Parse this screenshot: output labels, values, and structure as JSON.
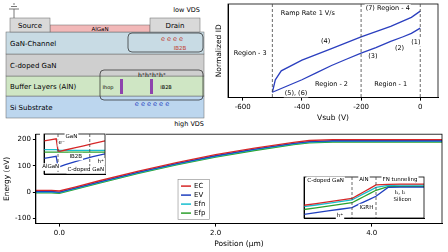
{
  "schematic": {
    "terminal_top": "low VDS",
    "terminal_bottom": "high VDS",
    "layers": {
      "source": "Source",
      "drain": "Drain",
      "barrier": "AlGaN",
      "channel": "GaN-Channel",
      "cdoped": "C-doped GaN",
      "buffer": "Buffer Layers (AlN)",
      "substrate": "Si Substrate"
    },
    "carriers": {
      "channel_electrons": "e e e e",
      "holes": "h⁺h⁺h⁺h⁺",
      "substrate_electrons": "e e e e e e"
    },
    "currents": {
      "drain": "IB2B",
      "buffer_left": "Ihop",
      "buffer_right": "IB2B"
    }
  },
  "chart_data": [
    {
      "type": "line",
      "xlabel": "Vsub (V)",
      "ylabel": "Normalized ID",
      "xlim": [
        -650,
        60
      ],
      "ylim": [
        0,
        1.05
      ],
      "xticks": [
        -600,
        -400,
        -200,
        0
      ],
      "tick_labels": "x",
      "grid": false,
      "series": [
        {
          "color": "#2b3fbf",
          "x": [
            0,
            -30,
            -60,
            -100,
            -150,
            -200,
            -250,
            -300,
            -350,
            -400,
            -450,
            -500
          ],
          "values": [
            0.78,
            0.72,
            0.68,
            0.63,
            0.56,
            0.5,
            0.43,
            0.36,
            0.28,
            0.2,
            0.13,
            0.06
          ]
        },
        {
          "color": "#2b3fbf",
          "x": [
            -500,
            -490,
            -470,
            -400,
            -300,
            -200,
            -100,
            -30,
            0
          ],
          "values": [
            0.06,
            0.2,
            0.3,
            0.42,
            0.55,
            0.68,
            0.8,
            0.9,
            0.97
          ]
        }
      ],
      "vlines": [
        -500,
        -200,
        0
      ],
      "annotations": [
        {
          "text": "Ramp Rate 1 V/s",
          "x": -380,
          "y": 0.95
        },
        {
          "text": "(7) Region - 4",
          "x": -110,
          "y": 1.0
        },
        {
          "text": "Region - 1",
          "x": -100,
          "y": 0.15
        },
        {
          "text": "Region - 2",
          "x": -300,
          "y": 0.15
        },
        {
          "text": "Region - 3",
          "x": -575,
          "y": 0.5
        },
        {
          "text": "(1)",
          "x": -15,
          "y": 0.62
        },
        {
          "text": "(2)",
          "x": -70,
          "y": 0.55
        },
        {
          "text": "(3)",
          "x": -160,
          "y": 0.46
        },
        {
          "text": "(4)",
          "x": -320,
          "y": 0.63
        },
        {
          "text": "(5), (6)",
          "x": -420,
          "y": 0.05
        }
      ]
    },
    {
      "type": "line",
      "xlabel": "Position (μm)",
      "ylabel": "Energy (eV)",
      "xlim": [
        -0.3,
        4.9
      ],
      "ylim": [
        -120,
        220
      ],
      "xticks": [
        {
          "value": 0,
          "label": "0.0"
        },
        {
          "value": 2,
          "label": "2.0"
        },
        {
          "value": 4,
          "label": "4.0"
        }
      ],
      "yticks": [
        -100,
        0,
        100,
        200
      ],
      "grid": false,
      "legend": "lower center",
      "x": [
        -0.3,
        -0.1,
        0,
        0.2,
        0.5,
        1,
        1.5,
        2,
        2.5,
        3,
        3.2,
        3.5,
        4,
        4.9
      ],
      "series": [
        {
          "name": "EC",
          "color": "#d62728",
          "values": [
            6,
            6,
            4,
            19,
            42,
            79,
            112,
            142,
            167,
            189,
            196,
            199,
            199,
            199
          ]
        },
        {
          "name": "EV",
          "color": "#1f3fbf",
          "values": [
            2,
            2,
            0,
            15,
            38,
            75,
            108,
            138,
            163,
            185,
            192,
            195,
            195,
            195
          ]
        },
        {
          "name": "Efn",
          "color": "#17becf",
          "values": [
            0,
            0,
            -2,
            13,
            36,
            73,
            106,
            136,
            161,
            183,
            190,
            193,
            193,
            193
          ]
        },
        {
          "name": "Efp",
          "color": "#2ca02c",
          "values": [
            -3,
            -3,
            -5,
            10,
            33,
            70,
            103,
            133,
            158,
            180,
            187,
            190,
            190,
            190
          ]
        }
      ]
    },
    {
      "type": "line",
      "xlim": [
        0,
        10
      ],
      "ylim": [
        -0.5,
        11
      ],
      "tick_labels": false,
      "grid": false,
      "x": [
        0,
        1,
        2,
        2.3,
        2.6,
        3.5,
        5,
        6.5,
        8,
        10
      ],
      "series": [
        {
          "color": "#d62728",
          "values": [
            9,
            9.3,
            9.6,
            6.2,
            6.0,
            6.4,
            7.0,
            7.6,
            8.2,
            9.0
          ]
        },
        {
          "color": "#1f3fbf",
          "values": [
            4,
            4.3,
            4.6,
            1.4,
            1.6,
            2.2,
            3.0,
            3.8,
            4.5,
            5.3
          ]
        },
        {
          "color": "#17becf",
          "values": [
            6.5,
            6.5,
            6.5,
            6.4,
            6.3,
            6.3,
            6.3,
            6.3,
            6.3,
            6.3
          ]
        },
        {
          "color": "#2ca02c",
          "values": [
            5.8,
            5.8,
            5.8,
            5.8,
            5.8,
            5.8,
            5.8,
            5.8,
            5.8,
            5.8
          ]
        }
      ],
      "vlines": [
        2.3,
        7.5
      ],
      "annotations": [
        {
          "text": "AlGaN",
          "x": 1.1,
          "y": 1.5
        },
        {
          "text": "GaN",
          "x": 4.5,
          "y": 10.3
        },
        {
          "text": "C-doped GaN",
          "x": 8,
          "y": 0.7
        },
        {
          "text": "e⁻",
          "x": 2.9,
          "y": 8.4
        },
        {
          "text": "IB2B",
          "x": 5.2,
          "y": 4.5
        },
        {
          "text": "h⁺",
          "x": 9.3,
          "y": 3.0
        }
      ]
    },
    {
      "type": "line",
      "xlim": [
        0,
        10
      ],
      "ylim": [
        -2.5,
        12
      ],
      "tick_labels": false,
      "grid": false,
      "x": [
        0,
        1,
        2,
        3,
        4,
        4.5,
        5,
        5.5,
        6,
        7,
        8,
        10
      ],
      "series": [
        {
          "color": "#d62728",
          "values": [
            2,
            2.6,
            3.2,
            3.8,
            4.4,
            5.6,
            6.8,
            8.0,
            9.2,
            9.4,
            9.5,
            9.5
          ]
        },
        {
          "color": "#1f3fbf",
          "values": [
            -1.2,
            -0.6,
            0,
            0.6,
            1.2,
            2.2,
            3.2,
            4.2,
            5.2,
            8.3,
            8.4,
            8.4
          ]
        },
        {
          "color": "#17becf",
          "values": [
            1.5,
            2.1,
            2.7,
            3.3,
            3.9,
            5.0,
            6.1,
            7.2,
            8.3,
            9.0,
            9.1,
            9.1
          ]
        },
        {
          "color": "#2ca02c",
          "values": [
            0.5,
            1.1,
            1.7,
            2.3,
            2.9,
            4.0,
            5.1,
            6.2,
            7.3,
            8.6,
            8.7,
            8.7
          ]
        }
      ],
      "vlines": [
        4,
        6
      ],
      "annotations": [
        {
          "text": "C-doped GaN",
          "x": 1.8,
          "y": 10.8
        },
        {
          "text": "AlN",
          "x": 5,
          "y": 11.2
        },
        {
          "text": "FN tunneling",
          "x": 8,
          "y": 11.2
        },
        {
          "text": "I₁, I₂",
          "x": 8,
          "y": 6.5
        },
        {
          "text": "Silicon",
          "x": 8.2,
          "y": 4
        },
        {
          "text": "h⁺",
          "x": 3,
          "y": -1.6
        },
        {
          "text": "IGRH",
          "x": 5.2,
          "y": 1.2
        }
      ]
    }
  ]
}
